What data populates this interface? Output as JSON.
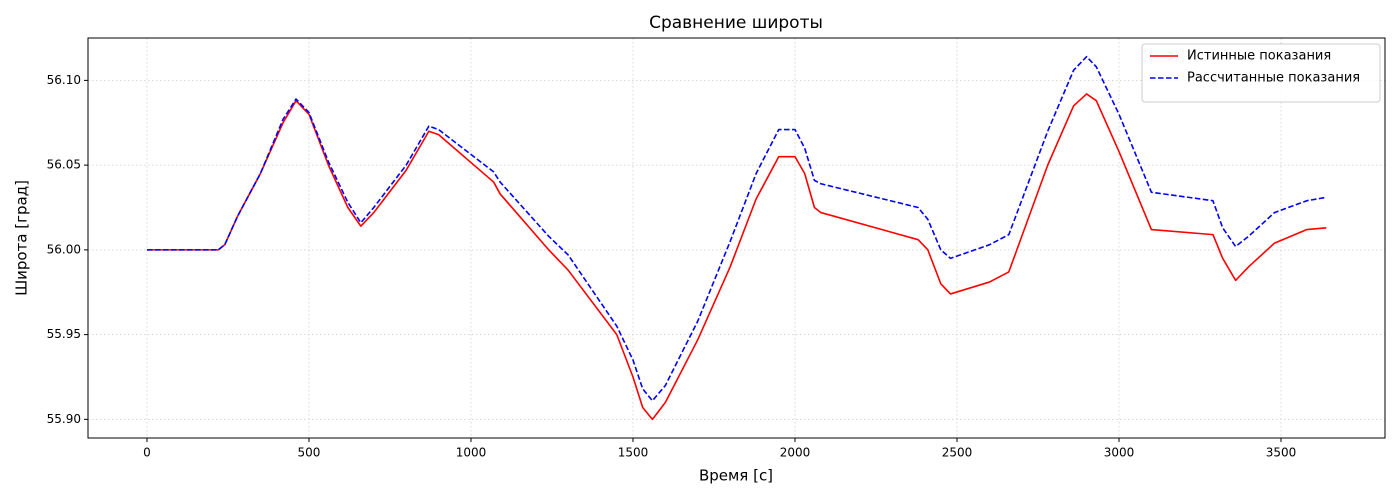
{
  "chart_data": {
    "type": "line",
    "title": "Сравнение широты",
    "x_label": "Время [с]",
    "y_label": "Широта [град]",
    "x": [
      0,
      220,
      240,
      280,
      350,
      420,
      460,
      500,
      560,
      620,
      660,
      700,
      800,
      870,
      900,
      1070,
      1090,
      1240,
      1300,
      1450,
      1500,
      1530,
      1560,
      1600,
      1700,
      1800,
      1880,
      1950,
      2000,
      2030,
      2060,
      2080,
      2380,
      2410,
      2450,
      2480,
      2600,
      2660,
      2780,
      2860,
      2900,
      2930,
      3000,
      3100,
      3290,
      3320,
      3360,
      3400,
      3480,
      3580,
      3640
    ],
    "series": [
      {
        "name": "Истинные показания",
        "color": "#ff0000",
        "style": "solid",
        "values": [
          56.0,
          56.0,
          56.003,
          56.02,
          56.045,
          56.075,
          56.088,
          56.08,
          56.05,
          56.025,
          56.014,
          56.022,
          56.047,
          56.07,
          56.068,
          56.04,
          56.033,
          56.0,
          55.988,
          55.95,
          55.925,
          55.907,
          55.9,
          55.91,
          55.947,
          55.99,
          56.03,
          56.055,
          56.055,
          56.045,
          56.025,
          56.022,
          56.006,
          56.0,
          55.98,
          55.974,
          55.981,
          55.987,
          56.05,
          56.085,
          56.092,
          56.088,
          56.058,
          56.012,
          56.009,
          55.995,
          55.982,
          55.99,
          56.004,
          56.012,
          56.013
        ]
      },
      {
        "name": "Рассчитанные показания",
        "color": "#0000ff",
        "style": "dashed",
        "values": [
          56.0,
          56.0,
          56.003,
          56.02,
          56.045,
          56.077,
          56.089,
          56.081,
          56.052,
          56.028,
          56.016,
          56.025,
          56.05,
          56.073,
          56.071,
          56.046,
          56.04,
          56.008,
          55.997,
          55.955,
          55.935,
          55.918,
          55.911,
          55.92,
          55.958,
          56.005,
          56.045,
          56.071,
          56.071,
          56.06,
          56.041,
          56.039,
          56.025,
          56.018,
          56.0,
          55.995,
          56.003,
          56.009,
          56.07,
          56.106,
          56.114,
          56.108,
          56.08,
          56.034,
          56.029,
          56.013,
          56.002,
          56.008,
          56.022,
          56.029,
          56.031
        ]
      }
    ],
    "xlim": [
      -182,
      3821
    ],
    "ylim": [
      55.889,
      56.125
    ],
    "xticks": [
      0,
      500,
      1000,
      1500,
      2000,
      2500,
      3000,
      3500
    ],
    "yticks": [
      {
        "value": 55.9,
        "label": "55.90"
      },
      55.95,
      {
        "value": 56.0,
        "label": "56.00"
      },
      56.05,
      {
        "value": 56.1,
        "label": "56.10"
      }
    ],
    "grid": true,
    "legend": "upper right"
  }
}
